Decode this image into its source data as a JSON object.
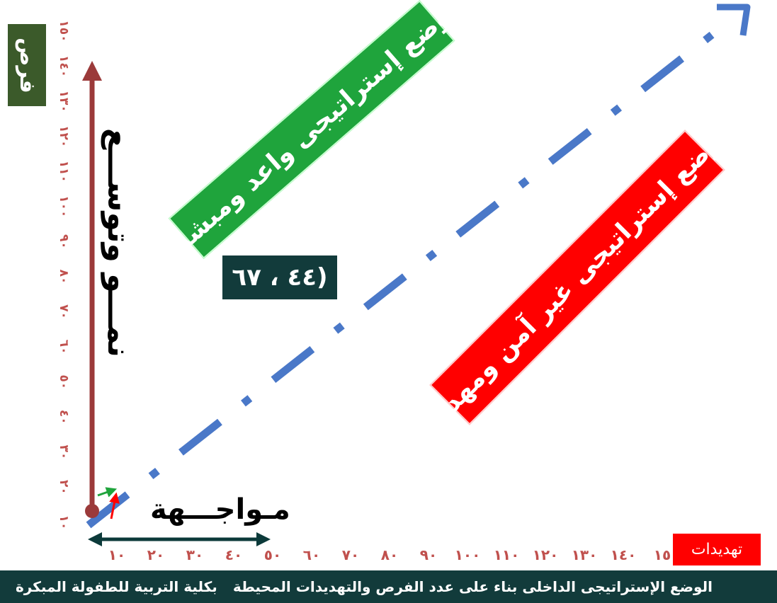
{
  "axes": {
    "y_label": "فرص",
    "x_label": "تهديدات",
    "y_ticks": [
      "١٠",
      "٢٠",
      "٣٠",
      "٤٠",
      "٥٠",
      "٦٠",
      "٧٠",
      "٨٠",
      "٩٠",
      "١٠٠",
      "١١٠",
      "١٢٠",
      "١٣٠",
      "١٤٠",
      "١٥٠"
    ],
    "x_ticks": [
      "١٠",
      "٢٠",
      "٣٠",
      "٤٠",
      "٥٠",
      "٦٠",
      "٧٠",
      "٨٠",
      "٩٠",
      "١٠٠",
      "١١٠",
      "١٢٠",
      "١٣٠",
      "١٤٠",
      "١٥"
    ],
    "colors": {
      "y_axis": "#9b3a3a",
      "x_axis": "#0c3a3a",
      "tick": "#c0504d",
      "diagonal": "#4a78c8"
    }
  },
  "zones": {
    "green": "وضع إستراتيجى واعد ومبشر",
    "red": "وضع إستراتيجى غير آمن ومهدد",
    "green_color": "#1fa43c",
    "red_color": "#ff0000"
  },
  "point": {
    "label": "(٤٤ ، ٦٧"
  },
  "labels": {
    "growth": "نمـــو وتوســـع",
    "confront": "مـواجـــهة"
  },
  "footer": {
    "left": "الوضع الإستراتيجى الداخلى بناء على عدد الفرص والتهديدات المحيطة",
    "right": "بكلية التربية للطفولة المبكرة"
  }
}
